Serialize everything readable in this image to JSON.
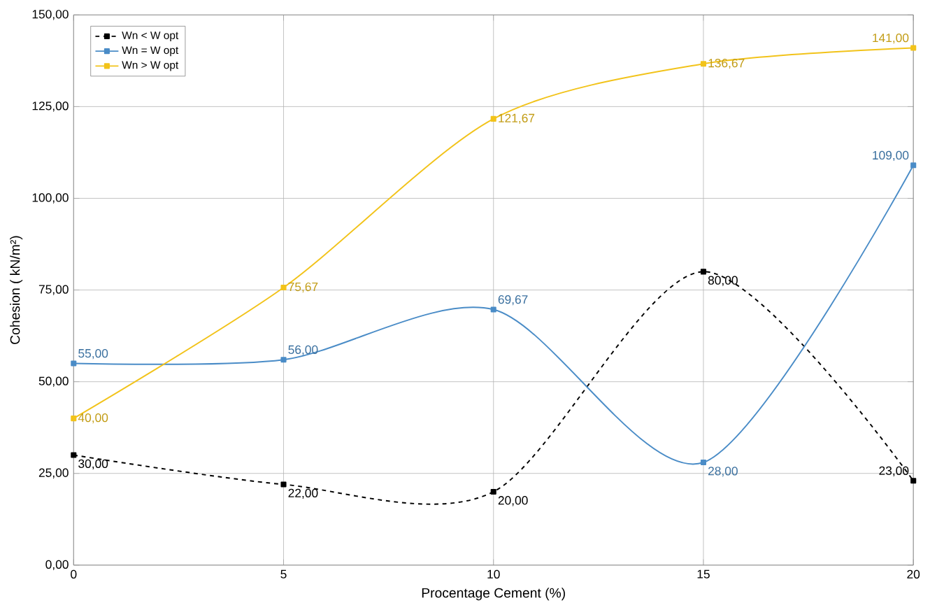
{
  "chart_data": {
    "type": "line",
    "xlabel": "Procentage Cement (%)",
    "ylabel": "Cohesion ( kN/m²)",
    "x": [
      0,
      5,
      10,
      15,
      20
    ],
    "series": [
      {
        "name": "Wn < W opt",
        "color": "#000000",
        "line_style": "dashed",
        "values": [
          30,
          22,
          20,
          80,
          23
        ],
        "value_labels": [
          "30,00",
          "22,00",
          "20,00",
          "80,00",
          "23,00"
        ]
      },
      {
        "name": "Wn = W opt",
        "color": "#4a8cc7",
        "line_style": "solid",
        "values": [
          55,
          56,
          69.67,
          28,
          109
        ],
        "value_labels": [
          "55,00",
          "56,00",
          "69,67",
          "28,00",
          "109,00"
        ]
      },
      {
        "name": "Wn > W opt",
        "color": "#f2c31a",
        "line_style": "solid",
        "values": [
          40,
          75.67,
          121.67,
          136.67,
          141
        ],
        "value_labels": [
          "40,00",
          "75,67",
          "121,67",
          "136,67",
          "141,00"
        ]
      }
    ],
    "xlim": [
      0,
      20
    ],
    "xticks": [
      0,
      5,
      10,
      15,
      20
    ],
    "ylim": [
      0,
      150
    ],
    "yticks": [
      {
        "value": 0,
        "label": "0,00"
      },
      {
        "value": 25,
        "label": "25,00"
      },
      {
        "value": 50,
        "label": "50,00"
      },
      {
        "value": 75,
        "label": "75,00"
      },
      {
        "value": 100,
        "label": "100,00"
      },
      {
        "value": 125,
        "label": "125,00"
      },
      {
        "value": 150,
        "label": "150,00"
      }
    ],
    "grid": true,
    "legend": "top left",
    "marker": "square"
  }
}
